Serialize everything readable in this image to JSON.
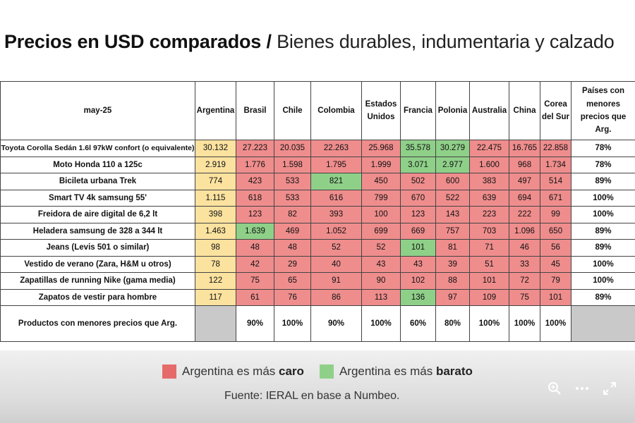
{
  "title": {
    "bold": "Precios en USD comparados",
    "separator": "/",
    "light": "Bienes durables, indumentaria y calzado"
  },
  "chart_data": {
    "type": "table",
    "header_label": "may-25",
    "columns": [
      "Argentina",
      "Brasil",
      "Chile",
      "Colombia",
      "Estados Unidos",
      "Francia",
      "Polonia",
      "Australia",
      "China",
      "Corea del Sur"
    ],
    "last_column": "Países con menores precios que Arg.",
    "rows": [
      {
        "product": "Toyota Corolla Sedán 1.6l 97kW confort (o equivalente)",
        "values": [
          "30.132",
          "27.223",
          "20.035",
          "22.263",
          "25.968",
          "35.578",
          "30.279",
          "22.475",
          "16.765",
          "22.858"
        ],
        "colors": [
          "arg",
          "red",
          "red",
          "red",
          "red",
          "green",
          "green",
          "red",
          "red",
          "red"
        ],
        "pct": "78%"
      },
      {
        "product": "Moto Honda 110 a 125c",
        "values": [
          "2.919",
          "1.776",
          "1.598",
          "1.795",
          "1.999",
          "3.071",
          "2.977",
          "1.600",
          "968",
          "1.734"
        ],
        "colors": [
          "arg",
          "red",
          "red",
          "red",
          "red",
          "green",
          "green",
          "red",
          "red",
          "red"
        ],
        "pct": "78%"
      },
      {
        "product": "Bicileta urbana Trek",
        "values": [
          "774",
          "423",
          "533",
          "821",
          "450",
          "502",
          "600",
          "383",
          "497",
          "514"
        ],
        "colors": [
          "arg",
          "red",
          "red",
          "green",
          "red",
          "red",
          "red",
          "red",
          "red",
          "red"
        ],
        "pct": "89%"
      },
      {
        "product": "Smart TV 4k samsung 55'",
        "values": [
          "1.115",
          "618",
          "533",
          "616",
          "799",
          "670",
          "522",
          "639",
          "694",
          "671"
        ],
        "colors": [
          "arg",
          "red",
          "red",
          "red",
          "red",
          "red",
          "red",
          "red",
          "red",
          "red"
        ],
        "pct": "100%"
      },
      {
        "product": "Freidora de aire digital de 6,2 lt",
        "values": [
          "398",
          "123",
          "82",
          "393",
          "100",
          "123",
          "143",
          "223",
          "222",
          "99"
        ],
        "colors": [
          "arg",
          "red",
          "red",
          "red",
          "red",
          "red",
          "red",
          "red",
          "red",
          "red"
        ],
        "pct": "100%"
      },
      {
        "product": "Heladera samsung de 328 a 344 lt",
        "values": [
          "1.463",
          "1.639",
          "469",
          "1.052",
          "699",
          "669",
          "757",
          "703",
          "1.096",
          "650"
        ],
        "colors": [
          "arg",
          "green",
          "red",
          "red",
          "red",
          "red",
          "red",
          "red",
          "red",
          "red"
        ],
        "pct": "89%"
      },
      {
        "product": "Jeans (Levis 501 o similar)",
        "values": [
          "98",
          "48",
          "48",
          "52",
          "52",
          "101",
          "81",
          "71",
          "46",
          "56"
        ],
        "colors": [
          "arg",
          "red",
          "red",
          "red",
          "red",
          "green",
          "red",
          "red",
          "red",
          "red"
        ],
        "pct": "89%"
      },
      {
        "product": "Vestido de verano (Zara, H&M u otros)",
        "values": [
          "78",
          "42",
          "29",
          "40",
          "43",
          "43",
          "39",
          "51",
          "33",
          "45"
        ],
        "colors": [
          "arg",
          "red",
          "red",
          "red",
          "red",
          "red",
          "red",
          "red",
          "red",
          "red"
        ],
        "pct": "100%"
      },
      {
        "product": "Zapatillas de running Nike (gama media)",
        "values": [
          "122",
          "75",
          "65",
          "91",
          "90",
          "102",
          "88",
          "101",
          "72",
          "79"
        ],
        "colors": [
          "arg",
          "red",
          "red",
          "red",
          "red",
          "red",
          "red",
          "red",
          "red",
          "red"
        ],
        "pct": "100%"
      },
      {
        "product": "Zapatos de vestir para hombre",
        "values": [
          "117",
          "61",
          "76",
          "86",
          "113",
          "136",
          "97",
          "109",
          "75",
          "101"
        ],
        "colors": [
          "arg",
          "red",
          "red",
          "red",
          "red",
          "green",
          "red",
          "red",
          "red",
          "red"
        ],
        "pct": "89%"
      }
    ],
    "summary": {
      "label": "Productos con menores precios que Arg.",
      "values": [
        "",
        "90%",
        "100%",
        "90%",
        "100%",
        "60%",
        "80%",
        "100%",
        "100%",
        "100%"
      ],
      "last": ""
    },
    "colors": {
      "red": "#ef8d8d",
      "green": "#8fd089",
      "argentina": "#fbe29f",
      "gray": "#c9c9c9"
    }
  },
  "legend": {
    "red_prefix": "Argentina es más ",
    "red_bold": "caro",
    "green_prefix": "Argentina es más ",
    "green_bold": "barato"
  },
  "source": "Fuente: IERAL en base a Numbeo.",
  "controls": {
    "zoom": "zoom-in-icon",
    "more": "more-icon",
    "expand": "expand-icon"
  }
}
